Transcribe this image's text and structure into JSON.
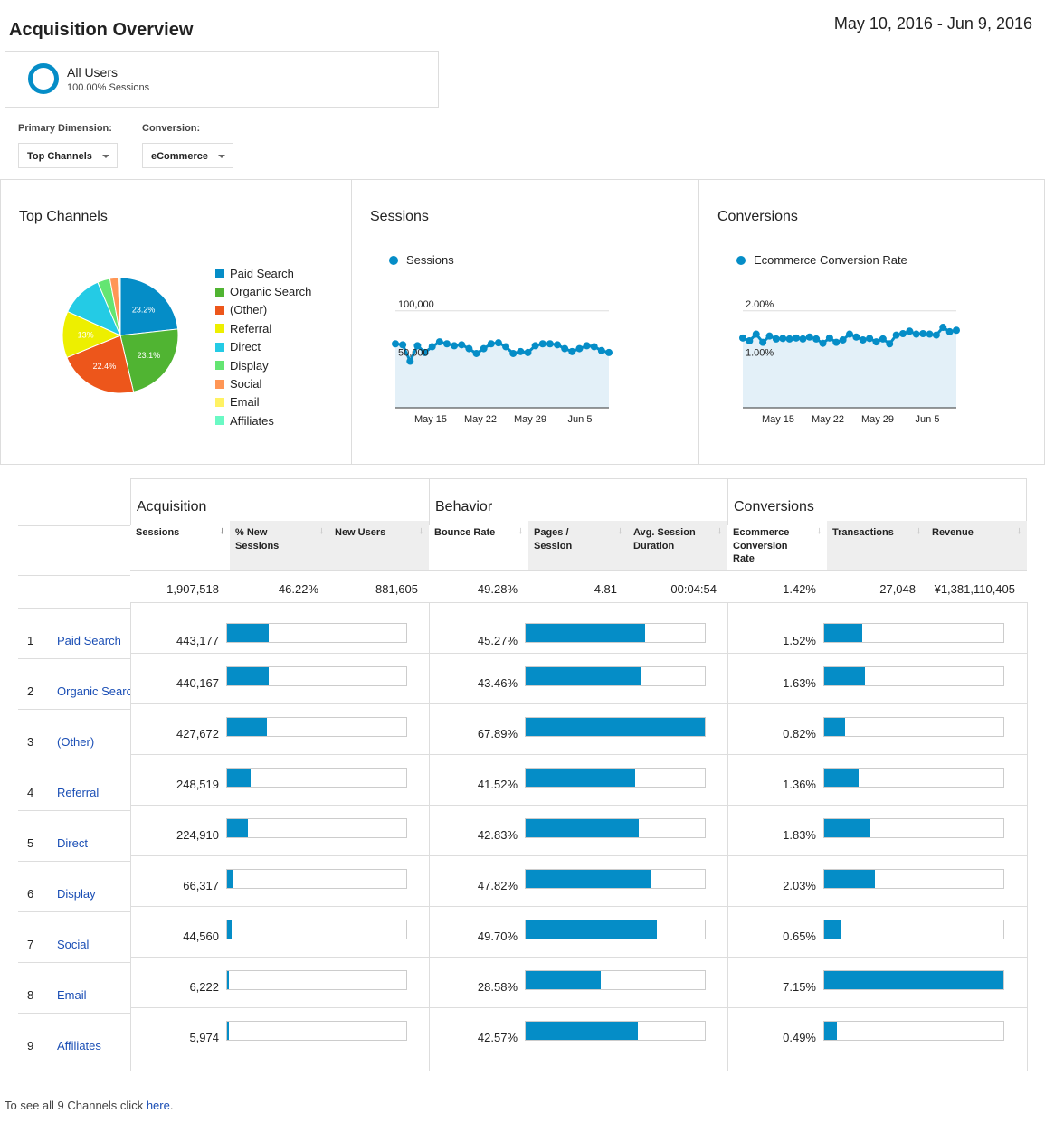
{
  "page": {
    "title": "Acquisition Overview",
    "date_range": "May 10, 2016 - Jun 9, 2016"
  },
  "segment": {
    "name": "All Users",
    "detail": "100.00% Sessions",
    "accent": "#058dc7"
  },
  "controls": {
    "primary_dimension_label": "Primary Dimension:",
    "primary_dimension_value": "Top Channels",
    "conversion_label": "Conversion:",
    "conversion_value": "eCommerce"
  },
  "colors": {
    "bar": "#058dc7",
    "link": "#1a4eb5",
    "area": "#e3f0f8"
  },
  "panels": {
    "top_channels": "Top Channels",
    "sessions": "Sessions",
    "conversions": "Conversions"
  },
  "chart_data": [
    {
      "type": "pie",
      "title": "Top Channels",
      "categories": [
        "Paid Search",
        "Organic Search",
        "(Other)",
        "Referral",
        "Direct",
        "Display",
        "Social",
        "Email",
        "Affiliates"
      ],
      "values": [
        23.2,
        23.1,
        22.4,
        13.0,
        11.8,
        3.5,
        2.3,
        0.3,
        0.3
      ],
      "slice_labels": [
        "23.2%",
        "23.1%",
        "22.4%",
        "13%",
        "",
        "",
        "",
        "",
        ""
      ],
      "colors": [
        "#058dc7",
        "#50b432",
        "#ed561b",
        "#edef00",
        "#24cbe5",
        "#64e572",
        "#ff9655",
        "#fff263",
        "#6af9c4"
      ]
    },
    {
      "type": "area",
      "series": [
        {
          "name": "Sessions",
          "values": [
            66000,
            65000,
            48000,
            64000,
            57000,
            63000,
            68000,
            66000,
            64000,
            65000,
            61000,
            56000,
            61000,
            66000,
            67000,
            63000,
            56000,
            58000,
            57000,
            64000,
            66000,
            66000,
            65000,
            61000,
            58000,
            61000,
            64000,
            63000,
            59000,
            57000
          ]
        }
      ],
      "ylim": [
        0,
        125000
      ],
      "yticks": [
        "100,000",
        "50,000"
      ],
      "xticks": [
        "May 15",
        "May 22",
        "May 29",
        "Jun 5"
      ]
    },
    {
      "type": "area",
      "series": [
        {
          "name": "Ecommerce Conversion Rate",
          "values": [
            1.44,
            1.38,
            1.52,
            1.35,
            1.48,
            1.42,
            1.43,
            1.42,
            1.44,
            1.42,
            1.46,
            1.42,
            1.33,
            1.44,
            1.35,
            1.4,
            1.52,
            1.46,
            1.4,
            1.43,
            1.36,
            1.42,
            1.32,
            1.5,
            1.53,
            1.58,
            1.52,
            1.53,
            1.52,
            1.5,
            1.66,
            1.57,
            1.6
          ]
        }
      ],
      "ylim": [
        0,
        2.5
      ],
      "yticks": [
        "2.00%",
        "1.00%"
      ],
      "xticks": [
        "May 15",
        "May 22",
        "May 29",
        "Jun 5"
      ]
    }
  ],
  "table": {
    "groups": [
      "Acquisition",
      "Behavior",
      "Conversions"
    ],
    "columns": [
      "Sessions",
      "% New Sessions",
      "New Users",
      "Bounce Rate",
      "Pages / Session",
      "Avg. Session Duration",
      "Ecommerce Conversion Rate",
      "Transactions",
      "Revenue"
    ],
    "sort_arrows": [
      "↓",
      "↓",
      "↓",
      "↓",
      "↓",
      "↓",
      "↓",
      "↓",
      "↓"
    ],
    "totals": [
      "1,907,518",
      "46.22%",
      "881,605",
      "49.28%",
      "4.81",
      "00:04:54",
      "1.42%",
      "27,048",
      "¥1,381,110,405"
    ],
    "rows": [
      {
        "idx": "1",
        "channel": "Paid Search",
        "sessions": "443,177",
        "sessions_frac": 0.2323,
        "bounce": "45.27%",
        "bounce_frac": 0.6668,
        "conv": "1.52%",
        "conv_frac": 0.2126
      },
      {
        "idx": "2",
        "channel": "Organic Search",
        "sessions": "440,167",
        "sessions_frac": 0.2308,
        "bounce": "43.46%",
        "bounce_frac": 0.6402,
        "conv": "1.63%",
        "conv_frac": 0.228
      },
      {
        "idx": "3",
        "channel": "(Other)",
        "sessions": "427,672",
        "sessions_frac": 0.2242,
        "bounce": "67.89%",
        "bounce_frac": 1.0,
        "conv": "0.82%",
        "conv_frac": 0.1147
      },
      {
        "idx": "4",
        "channel": "Referral",
        "sessions": "248,519",
        "sessions_frac": 0.1303,
        "bounce": "41.52%",
        "bounce_frac": 0.6116,
        "conv": "1.36%",
        "conv_frac": 0.1902
      },
      {
        "idx": "5",
        "channel": "Direct",
        "sessions": "224,910",
        "sessions_frac": 0.1179,
        "bounce": "42.83%",
        "bounce_frac": 0.6309,
        "conv": "1.83%",
        "conv_frac": 0.2559
      },
      {
        "idx": "6",
        "channel": "Display",
        "sessions": "66,317",
        "sessions_frac": 0.0348,
        "bounce": "47.82%",
        "bounce_frac": 0.7044,
        "conv": "2.03%",
        "conv_frac": 0.2839
      },
      {
        "idx": "7",
        "channel": "Social",
        "sessions": "44,560",
        "sessions_frac": 0.0234,
        "bounce": "49.70%",
        "bounce_frac": 0.7321,
        "conv": "0.65%",
        "conv_frac": 0.0909
      },
      {
        "idx": "8",
        "channel": "Email",
        "sessions": "6,222",
        "sessions_frac": 0.0033,
        "bounce": "28.58%",
        "bounce_frac": 0.421,
        "conv": "7.15%",
        "conv_frac": 1.0
      },
      {
        "idx": "9",
        "channel": "Affiliates",
        "sessions": "5,974",
        "sessions_frac": 0.0031,
        "bounce": "42.57%",
        "bounce_frac": 0.627,
        "conv": "0.49%",
        "conv_frac": 0.0685
      }
    ]
  },
  "footer": {
    "text": "To see all 9 Channels click ",
    "link": "here",
    "period": "."
  }
}
